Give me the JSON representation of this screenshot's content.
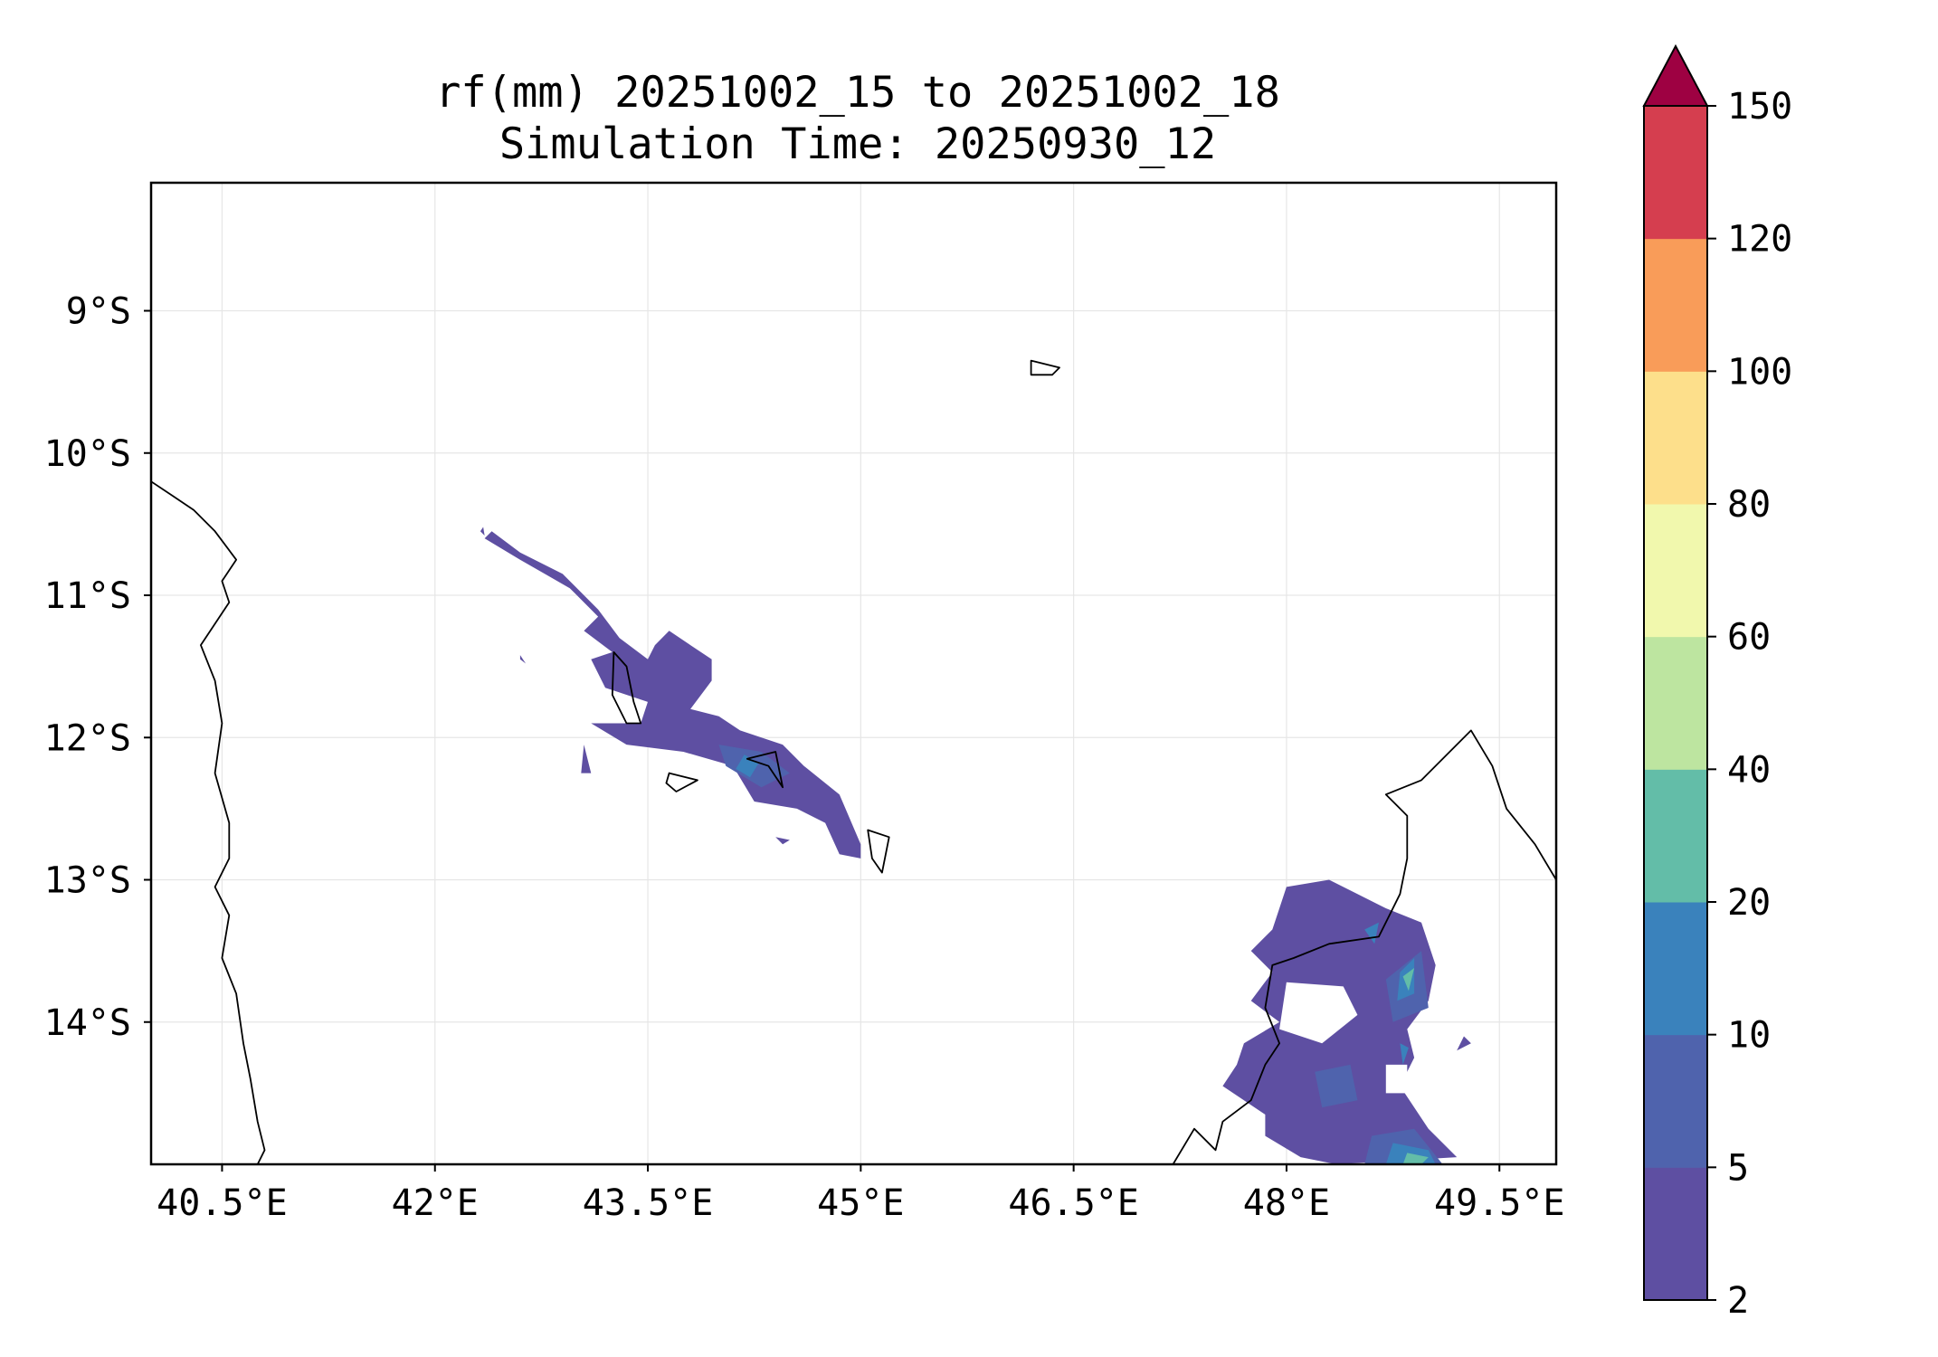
{
  "chart_data": {
    "type": "map-contour",
    "title": "rf(mm) 20251002_15 to 20251002_18",
    "subtitle": "Simulation Time: 20250930_12",
    "x_ticks": [
      40.5,
      42,
      43.5,
      45,
      46.5,
      48,
      49.5
    ],
    "x_tick_labels": [
      "40.5°E",
      "42°E",
      "43.5°E",
      "45°E",
      "46.5°E",
      "48°E",
      "49.5°E"
    ],
    "y_ticks": [
      -9,
      -10,
      -11,
      -12,
      -13,
      -14
    ],
    "y_tick_labels": [
      "9°S",
      "10°S",
      "11°S",
      "12°S",
      "13°S",
      "14°S"
    ],
    "xlim": [
      40.0,
      49.9
    ],
    "ylim": [
      -15.0,
      -8.1
    ],
    "grid": true,
    "colorbar": {
      "levels": [
        2,
        5,
        10,
        20,
        40,
        60,
        80,
        100,
        120,
        150
      ],
      "tick_labels": [
        "2",
        "5",
        "10",
        "20",
        "40",
        "60",
        "80",
        "100",
        "120",
        "150"
      ],
      "colors": [
        "#5e4fa2",
        "#4f63ad",
        "#3a82bc",
        "#63bda8",
        "#bde5a0",
        "#f1f8ad",
        "#fddf8b",
        "#f99c59",
        "#d53e4f",
        "#9e0142"
      ],
      "extend": "max"
    },
    "rain_areas": [
      {
        "level": 2,
        "points": [
          [
            42.35,
            -10.6
          ],
          [
            42.6,
            -10.75
          ],
          [
            42.95,
            -10.95
          ],
          [
            43.15,
            -11.15
          ],
          [
            43.05,
            -11.25
          ],
          [
            43.25,
            -11.4
          ],
          [
            43.1,
            -11.45
          ],
          [
            43.2,
            -11.65
          ],
          [
            43.5,
            -11.75
          ],
          [
            43.45,
            -11.9
          ],
          [
            43.1,
            -11.9
          ],
          [
            43.35,
            -12.05
          ],
          [
            43.75,
            -12.1
          ],
          [
            44.1,
            -12.2
          ],
          [
            44.25,
            -12.45
          ],
          [
            44.55,
            -12.5
          ],
          [
            44.75,
            -12.6
          ],
          [
            44.85,
            -12.82
          ],
          [
            45.0,
            -12.85
          ],
          [
            45.0,
            -12.75
          ],
          [
            44.85,
            -12.4
          ],
          [
            44.6,
            -12.2
          ],
          [
            44.45,
            -12.05
          ],
          [
            44.15,
            -11.95
          ],
          [
            44.0,
            -11.85
          ],
          [
            43.8,
            -11.8
          ],
          [
            43.95,
            -11.6
          ],
          [
            43.95,
            -11.45
          ],
          [
            43.8,
            -11.35
          ],
          [
            43.65,
            -11.25
          ],
          [
            43.55,
            -11.35
          ],
          [
            43.5,
            -11.45
          ],
          [
            43.3,
            -11.3
          ],
          [
            43.15,
            -11.1
          ],
          [
            42.9,
            -10.85
          ],
          [
            42.6,
            -10.7
          ],
          [
            42.4,
            -10.55
          ]
        ]
      },
      {
        "level": 2,
        "points": [
          [
            42.32,
            -10.55
          ],
          [
            42.35,
            -10.58
          ],
          [
            42.34,
            -10.52
          ]
        ]
      },
      {
        "level": 2,
        "points": [
          [
            42.6,
            -11.42
          ],
          [
            42.64,
            -11.48
          ],
          [
            42.6,
            -11.45
          ]
        ]
      },
      {
        "level": 2,
        "points": [
          [
            43.05,
            -12.05
          ],
          [
            43.1,
            -12.25
          ],
          [
            43.03,
            -12.25
          ]
        ]
      },
      {
        "level": 2,
        "points": [
          [
            44.4,
            -12.7
          ],
          [
            44.5,
            -12.72
          ],
          [
            44.45,
            -12.75
          ]
        ]
      },
      {
        "level": 2,
        "points": [
          [
            48.0,
            -13.05
          ],
          [
            48.3,
            -13.0
          ],
          [
            48.5,
            -13.1
          ],
          [
            48.7,
            -13.2
          ],
          [
            48.95,
            -13.3
          ],
          [
            49.05,
            -13.6
          ],
          [
            49.0,
            -13.85
          ],
          [
            48.85,
            -14.05
          ],
          [
            48.9,
            -14.25
          ],
          [
            48.8,
            -14.45
          ],
          [
            49.0,
            -14.75
          ],
          [
            49.2,
            -14.95
          ],
          [
            48.35,
            -15.0
          ],
          [
            48.1,
            -14.95
          ],
          [
            47.85,
            -14.8
          ],
          [
            47.85,
            -14.65
          ],
          [
            47.55,
            -14.45
          ],
          [
            47.65,
            -14.3
          ],
          [
            47.7,
            -14.15
          ],
          [
            47.95,
            -14.0
          ],
          [
            47.75,
            -13.85
          ],
          [
            47.9,
            -13.65
          ],
          [
            47.75,
            -13.5
          ],
          [
            47.9,
            -13.35
          ],
          [
            47.95,
            -13.2
          ]
        ]
      },
      {
        "level": 2,
        "points": [
          [
            49.25,
            -14.1
          ],
          [
            49.3,
            -14.15
          ],
          [
            49.2,
            -14.2
          ]
        ]
      },
      {
        "level": 5,
        "points": [
          [
            44.0,
            -12.05
          ],
          [
            44.3,
            -12.1
          ],
          [
            44.5,
            -12.25
          ],
          [
            44.3,
            -12.35
          ],
          [
            44.05,
            -12.2
          ]
        ]
      },
      {
        "level": 5,
        "points": [
          [
            48.7,
            -13.7
          ],
          [
            48.95,
            -13.5
          ],
          [
            49.0,
            -13.9
          ],
          [
            48.75,
            -14.0
          ]
        ]
      },
      {
        "level": 5,
        "points": [
          [
            48.2,
            -14.35
          ],
          [
            48.45,
            -14.3
          ],
          [
            48.5,
            -14.55
          ],
          [
            48.25,
            -14.6
          ]
        ]
      },
      {
        "level": 5,
        "points": [
          [
            48.6,
            -14.8
          ],
          [
            48.9,
            -14.75
          ],
          [
            49.1,
            -15.0
          ],
          [
            48.55,
            -15.0
          ]
        ]
      },
      {
        "level": 10,
        "points": [
          [
            44.18,
            -12.12
          ],
          [
            44.28,
            -12.18
          ],
          [
            44.22,
            -12.28
          ],
          [
            44.12,
            -12.22
          ]
        ]
      },
      {
        "level": 10,
        "points": [
          [
            48.55,
            -13.35
          ],
          [
            48.65,
            -13.3
          ],
          [
            48.62,
            -13.45
          ]
        ]
      },
      {
        "level": 10,
        "points": [
          [
            48.8,
            -13.65
          ],
          [
            48.9,
            -13.55
          ],
          [
            48.9,
            -13.8
          ],
          [
            48.78,
            -13.85
          ]
        ]
      },
      {
        "level": 10,
        "points": [
          [
            48.8,
            -14.15
          ],
          [
            48.86,
            -14.18
          ],
          [
            48.82,
            -14.3
          ]
        ]
      },
      {
        "level": 10,
        "points": [
          [
            48.75,
            -14.85
          ],
          [
            49.0,
            -14.9
          ],
          [
            49.05,
            -15.0
          ],
          [
            48.7,
            -15.0
          ]
        ]
      },
      {
        "level": 20,
        "points": [
          [
            48.82,
            -13.68
          ],
          [
            48.9,
            -13.62
          ],
          [
            48.86,
            -13.78
          ]
        ]
      },
      {
        "level": 20,
        "points": [
          [
            48.85,
            -14.92
          ],
          [
            49.0,
            -14.95
          ],
          [
            48.95,
            -15.0
          ],
          [
            48.82,
            -15.0
          ]
        ]
      }
    ],
    "dry_holes": [
      {
        "points": [
          [
            48.7,
            -14.3
          ],
          [
            48.85,
            -14.3
          ],
          [
            48.85,
            -14.5
          ],
          [
            48.7,
            -14.5
          ]
        ]
      },
      {
        "points": [
          [
            48.0,
            -13.72
          ],
          [
            48.4,
            -13.75
          ],
          [
            48.5,
            -13.95
          ],
          [
            48.25,
            -14.15
          ],
          [
            47.95,
            -14.05
          ]
        ]
      }
    ],
    "coastlines": [
      {
        "name": "africa",
        "points": [
          [
            40.0,
            -10.2
          ],
          [
            40.15,
            -10.3
          ],
          [
            40.3,
            -10.4
          ],
          [
            40.45,
            -10.55
          ],
          [
            40.6,
            -10.75
          ],
          [
            40.5,
            -10.9
          ],
          [
            40.55,
            -11.05
          ],
          [
            40.35,
            -11.35
          ],
          [
            40.45,
            -11.6
          ],
          [
            40.5,
            -11.9
          ],
          [
            40.45,
            -12.25
          ],
          [
            40.55,
            -12.6
          ],
          [
            40.55,
            -12.85
          ],
          [
            40.45,
            -13.05
          ],
          [
            40.55,
            -13.25
          ],
          [
            40.5,
            -13.55
          ],
          [
            40.6,
            -13.8
          ],
          [
            40.65,
            -14.15
          ],
          [
            40.7,
            -14.4
          ],
          [
            40.75,
            -14.7
          ],
          [
            40.8,
            -14.9
          ],
          [
            40.75,
            -15.0
          ]
        ]
      },
      {
        "name": "madagascar",
        "points": [
          [
            47.2,
            -15.0
          ],
          [
            47.35,
            -14.75
          ],
          [
            47.5,
            -14.9
          ],
          [
            47.55,
            -14.7
          ],
          [
            47.75,
            -14.55
          ],
          [
            47.85,
            -14.3
          ],
          [
            47.95,
            -14.15
          ],
          [
            47.85,
            -13.9
          ],
          [
            47.9,
            -13.6
          ],
          [
            48.05,
            -13.55
          ],
          [
            48.3,
            -13.45
          ],
          [
            48.65,
            -13.4
          ],
          [
            48.8,
            -13.1
          ],
          [
            48.85,
            -12.85
          ],
          [
            48.85,
            -12.55
          ],
          [
            48.7,
            -12.4
          ],
          [
            48.95,
            -12.3
          ],
          [
            49.15,
            -12.1
          ],
          [
            49.3,
            -11.95
          ],
          [
            49.45,
            -12.2
          ],
          [
            49.55,
            -12.5
          ],
          [
            49.75,
            -12.75
          ],
          [
            49.9,
            -13.0
          ]
        ]
      },
      {
        "name": "grande-comore",
        "points": [
          [
            43.26,
            -11.4
          ],
          [
            43.35,
            -11.5
          ],
          [
            43.4,
            -11.75
          ],
          [
            43.45,
            -11.9
          ],
          [
            43.35,
            -11.9
          ],
          [
            43.25,
            -11.7
          ]
        ]
      },
      {
        "name": "moheli",
        "points": [
          [
            43.65,
            -12.25
          ],
          [
            43.85,
            -12.3
          ],
          [
            43.7,
            -12.38
          ],
          [
            43.63,
            -12.32
          ]
        ]
      },
      {
        "name": "anjouan",
        "points": [
          [
            44.2,
            -12.15
          ],
          [
            44.4,
            -12.1
          ],
          [
            44.45,
            -12.35
          ],
          [
            44.35,
            -12.2
          ]
        ]
      },
      {
        "name": "mayotte",
        "points": [
          [
            45.05,
            -12.65
          ],
          [
            45.2,
            -12.7
          ],
          [
            45.15,
            -12.95
          ],
          [
            45.08,
            -12.85
          ]
        ]
      },
      {
        "name": "aldabra",
        "points": [
          [
            46.2,
            -9.35
          ],
          [
            46.4,
            -9.4
          ],
          [
            46.35,
            -9.45
          ],
          [
            46.2,
            -9.45
          ]
        ]
      }
    ]
  }
}
